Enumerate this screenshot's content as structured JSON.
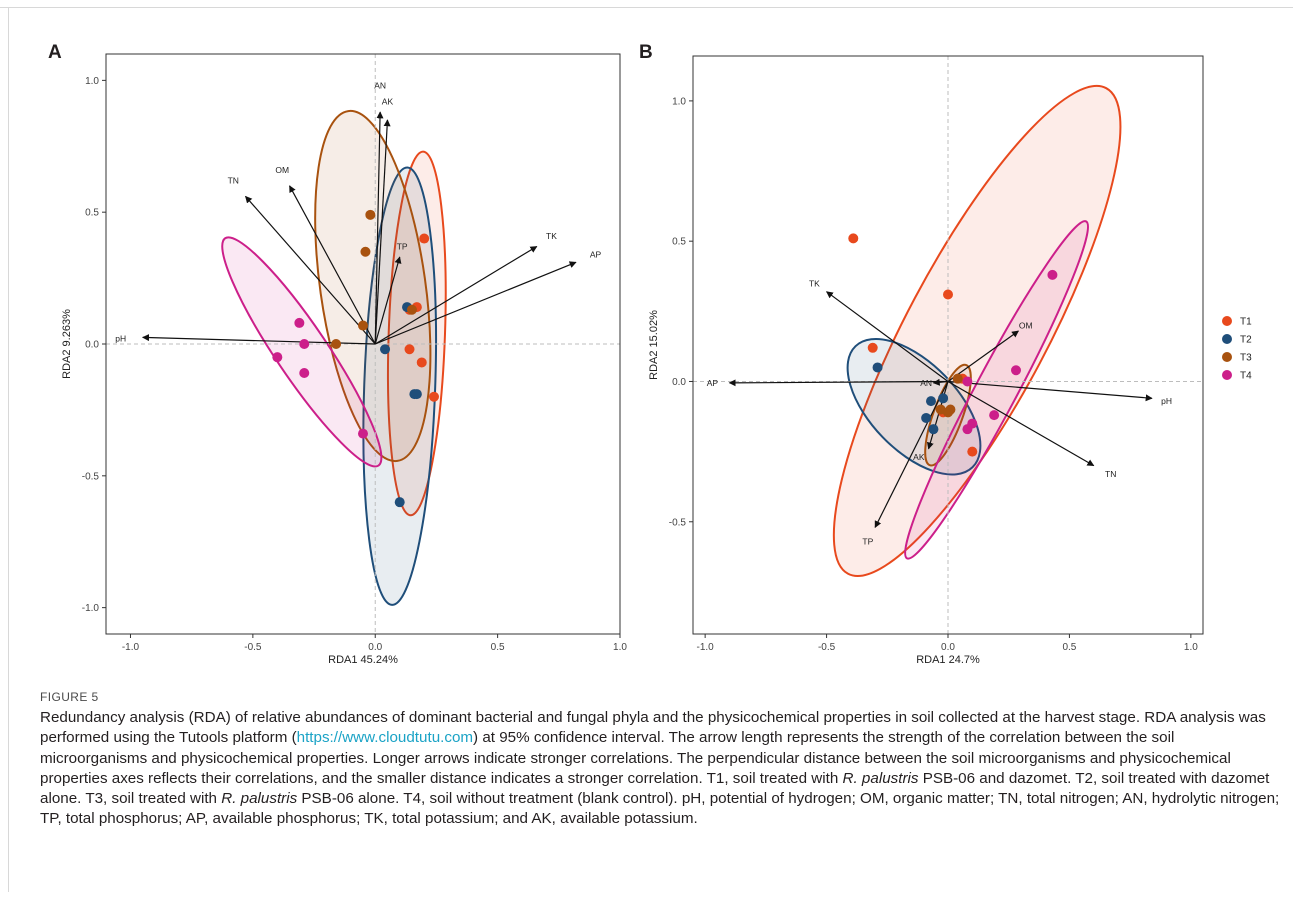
{
  "panels": {
    "a": "A",
    "b": "B"
  },
  "figure_label": "FIGURE 5",
  "caption": {
    "p1": "Redundancy analysis (RDA) of relative abundances of dominant bacterial and fungal phyla and the physicochemical properties in soil collected at the harvest stage. RDA analysis was performed using the Tutools platform (",
    "link": "https://www.cloudtutu.com",
    "p2": ") at 95% confidence interval. The arrow length represents the strength of the correlation between the soil microorganisms and physicochemical properties. Longer arrows indicate stronger correlations. The perpendicular distance between the soil microorganisms and physicochemical properties axes reflects their correlations, and the smaller distance indicates a stronger correlation. T1, soil treated with ",
    "i1": "R. palustris",
    "p3": " PSB-06 and dazomet. T2, soil treated with dazomet alone. T3, soil treated with ",
    "i2": "R. palustris",
    "p4": " PSB-06 alone. T4, soil without treatment (blank control). pH, potential of hydrogen; OM, organic matter; TN, total nitrogen; AN, hydrolytic nitrogen; TP, total phosphorus; AP, available phosphorus; TK, total potassium; and AK, available potassium."
  },
  "chart_data": [
    {
      "type": "scatter",
      "panel": "A",
      "xlabel": "RDA1 45.24%",
      "ylabel": "RDA2 9.263%",
      "xlim": [
        -1.1,
        1.0
      ],
      "ylim": [
        -1.1,
        1.1
      ],
      "xticks": [
        -1.0,
        -0.5,
        0.0,
        0.5,
        1.0
      ],
      "xtick_labels": [
        "-1.0",
        "-0.5",
        "0.0",
        "0.5",
        "1.0"
      ],
      "yticks": [
        -1.0,
        -0.5,
        0.0,
        0.5,
        1.0
      ],
      "ytick_labels": [
        "-1.0",
        "-0.5",
        "0.0",
        "0.5",
        "1.0"
      ],
      "colors": {
        "T1": "#e8491d",
        "T2": "#1f4e7a",
        "T3": "#a8520f",
        "T4": "#cc1f8a"
      },
      "arrows": [
        {
          "name": "AN",
          "x": 0.02,
          "y": 0.88,
          "lx": 0.02,
          "ly": 0.98
        },
        {
          "name": "AK",
          "x": 0.05,
          "y": 0.85,
          "lx": 0.05,
          "ly": 0.92
        },
        {
          "name": "TN",
          "x": -0.53,
          "y": 0.56,
          "lx": -0.58,
          "ly": 0.62
        },
        {
          "name": "OM",
          "x": -0.35,
          "y": 0.6,
          "lx": -0.38,
          "ly": 0.66
        },
        {
          "name": "TP",
          "x": 0.1,
          "y": 0.33,
          "lx": 0.11,
          "ly": 0.37
        },
        {
          "name": "TK",
          "x": 0.66,
          "y": 0.37,
          "lx": 0.72,
          "ly": 0.41
        },
        {
          "name": "AP",
          "x": 0.82,
          "y": 0.31,
          "lx": 0.9,
          "ly": 0.34
        },
        {
          "name": "pH",
          "x": -0.95,
          "y": 0.025,
          "lx": -1.04,
          "ly": 0.02
        }
      ],
      "ellipses": [
        {
          "group": "T1",
          "cx": 0.17,
          "cy": 0.04,
          "rx": 0.115,
          "ry": 0.69,
          "angle": 2
        },
        {
          "group": "T2",
          "cx": 0.1,
          "cy": -0.16,
          "rx": 0.145,
          "ry": 0.83,
          "angle": 2
        },
        {
          "group": "T3",
          "cx": -0.01,
          "cy": 0.22,
          "rx": 0.215,
          "ry": 0.67,
          "angle": -8
        },
        {
          "group": "T4",
          "cx": -0.3,
          "cy": -0.03,
          "rx": 0.105,
          "ry": 0.52,
          "angle": -34
        }
      ],
      "points": [
        {
          "group": "T1",
          "x": 0.2,
          "y": 0.4
        },
        {
          "group": "T1",
          "x": 0.17,
          "y": 0.14
        },
        {
          "group": "T1",
          "x": 0.14,
          "y": 0.13
        },
        {
          "group": "T1",
          "x": 0.14,
          "y": -0.02
        },
        {
          "group": "T1",
          "x": 0.19,
          "y": -0.07
        },
        {
          "group": "T1",
          "x": 0.24,
          "y": -0.2
        },
        {
          "group": "T2",
          "x": 0.13,
          "y": 0.14
        },
        {
          "group": "T2",
          "x": 0.04,
          "y": -0.02
        },
        {
          "group": "T2",
          "x": 0.16,
          "y": -0.19
        },
        {
          "group": "T2",
          "x": 0.17,
          "y": -0.19
        },
        {
          "group": "T2",
          "x": 0.1,
          "y": -0.6
        },
        {
          "group": "T3",
          "x": -0.02,
          "y": 0.49
        },
        {
          "group": "T3",
          "x": -0.04,
          "y": 0.35
        },
        {
          "group": "T3",
          "x": -0.05,
          "y": 0.07
        },
        {
          "group": "T3",
          "x": -0.16,
          "y": 0.0
        },
        {
          "group": "T3",
          "x": 0.15,
          "y": 0.13
        },
        {
          "group": "T4",
          "x": -0.31,
          "y": 0.08
        },
        {
          "group": "T4",
          "x": -0.29,
          "y": 0.0
        },
        {
          "group": "T4",
          "x": -0.4,
          "y": -0.05
        },
        {
          "group": "T4",
          "x": -0.29,
          "y": -0.11
        },
        {
          "group": "T4",
          "x": -0.05,
          "y": -0.34
        }
      ]
    },
    {
      "type": "scatter",
      "panel": "B",
      "xlabel": "RDA1 24.7%",
      "ylabel": "RDA2 15.02%",
      "xlim": [
        -1.05,
        1.05
      ],
      "ylim": [
        -0.9,
        1.16
      ],
      "xticks": [
        -1.0,
        -0.5,
        0.0,
        0.5,
        1.0
      ],
      "xtick_labels": [
        "-1.0",
        "-0.5",
        "0.0",
        "0.5",
        "1.0"
      ],
      "yticks": [
        -0.5,
        0.0,
        0.5,
        1.0
      ],
      "ytick_labels": [
        "-0.5",
        "0.0",
        "0.5",
        "1.0"
      ],
      "legend": [
        {
          "label": "T1",
          "color": "#e8491d"
        },
        {
          "label": "T2",
          "color": "#1f4e7a"
        },
        {
          "label": "T3",
          "color": "#a8520f"
        },
        {
          "label": "T4",
          "color": "#cc1f8a"
        }
      ],
      "legend_position": "right",
      "colors": {
        "T1": "#e8491d",
        "T2": "#1f4e7a",
        "T3": "#a8520f",
        "T4": "#cc1f8a"
      },
      "arrows": [
        {
          "name": "TK",
          "x": -0.5,
          "y": 0.32,
          "lx": -0.55,
          "ly": 0.35
        },
        {
          "name": "OM",
          "x": 0.29,
          "y": 0.18,
          "lx": 0.32,
          "ly": 0.2
        },
        {
          "name": "AP",
          "x": -0.9,
          "y": -0.005,
          "lx": -0.97,
          "ly": -0.005
        },
        {
          "name": "pH",
          "x": 0.84,
          "y": -0.06,
          "lx": 0.9,
          "ly": -0.07
        },
        {
          "name": "TN",
          "x": 0.6,
          "y": -0.3,
          "lx": 0.67,
          "ly": -0.33
        },
        {
          "name": "TP",
          "x": -0.3,
          "y": -0.52,
          "lx": -0.33,
          "ly": -0.57
        },
        {
          "name": "AN",
          "x": -0.06,
          "y": -0.005,
          "lx": -0.09,
          "ly": -0.005
        },
        {
          "name": "AK",
          "x": -0.08,
          "y": -0.24,
          "lx": -0.12,
          "ly": -0.27
        }
      ],
      "ellipses": [
        {
          "group": "T1",
          "cx": 0.12,
          "cy": 0.18,
          "rx": 0.29,
          "ry": 0.98,
          "angle": 28
        },
        {
          "group": "T2",
          "cx": -0.14,
          "cy": -0.09,
          "rx": 0.18,
          "ry": 0.3,
          "angle": -44
        },
        {
          "group": "T3",
          "cx": 0.0,
          "cy": -0.12,
          "rx": 0.06,
          "ry": 0.19,
          "angle": 20
        },
        {
          "group": "T4",
          "cx": 0.2,
          "cy": -0.03,
          "rx": 0.085,
          "ry": 0.68,
          "angle": 28
        }
      ],
      "points": [
        {
          "group": "T1",
          "x": -0.39,
          "y": 0.51
        },
        {
          "group": "T1",
          "x": 0.0,
          "y": 0.31
        },
        {
          "group": "T1",
          "x": -0.31,
          "y": 0.12
        },
        {
          "group": "T1",
          "x": 0.06,
          "y": 0.01
        },
        {
          "group": "T1",
          "x": 0.1,
          "y": -0.25
        },
        {
          "group": "T1",
          "x": -0.02,
          "y": -0.11
        },
        {
          "group": "T2",
          "x": -0.29,
          "y": 0.05
        },
        {
          "group": "T2",
          "x": -0.07,
          "y": -0.07
        },
        {
          "group": "T2",
          "x": -0.02,
          "y": -0.06
        },
        {
          "group": "T2",
          "x": -0.09,
          "y": -0.13
        },
        {
          "group": "T2",
          "x": -0.06,
          "y": -0.17
        },
        {
          "group": "T3",
          "x": 0.04,
          "y": 0.01
        },
        {
          "group": "T3",
          "x": -0.03,
          "y": -0.1
        },
        {
          "group": "T3",
          "x": 0.01,
          "y": -0.1
        },
        {
          "group": "T3",
          "x": 0.0,
          "y": -0.11
        },
        {
          "group": "T4",
          "x": 0.43,
          "y": 0.38
        },
        {
          "group": "T4",
          "x": 0.28,
          "y": 0.04
        },
        {
          "group": "T4",
          "x": 0.19,
          "y": -0.12
        },
        {
          "group": "T4",
          "x": 0.1,
          "y": -0.15
        },
        {
          "group": "T4",
          "x": 0.08,
          "y": -0.17
        },
        {
          "group": "T4",
          "x": 0.08,
          "y": 0.0
        }
      ]
    }
  ]
}
